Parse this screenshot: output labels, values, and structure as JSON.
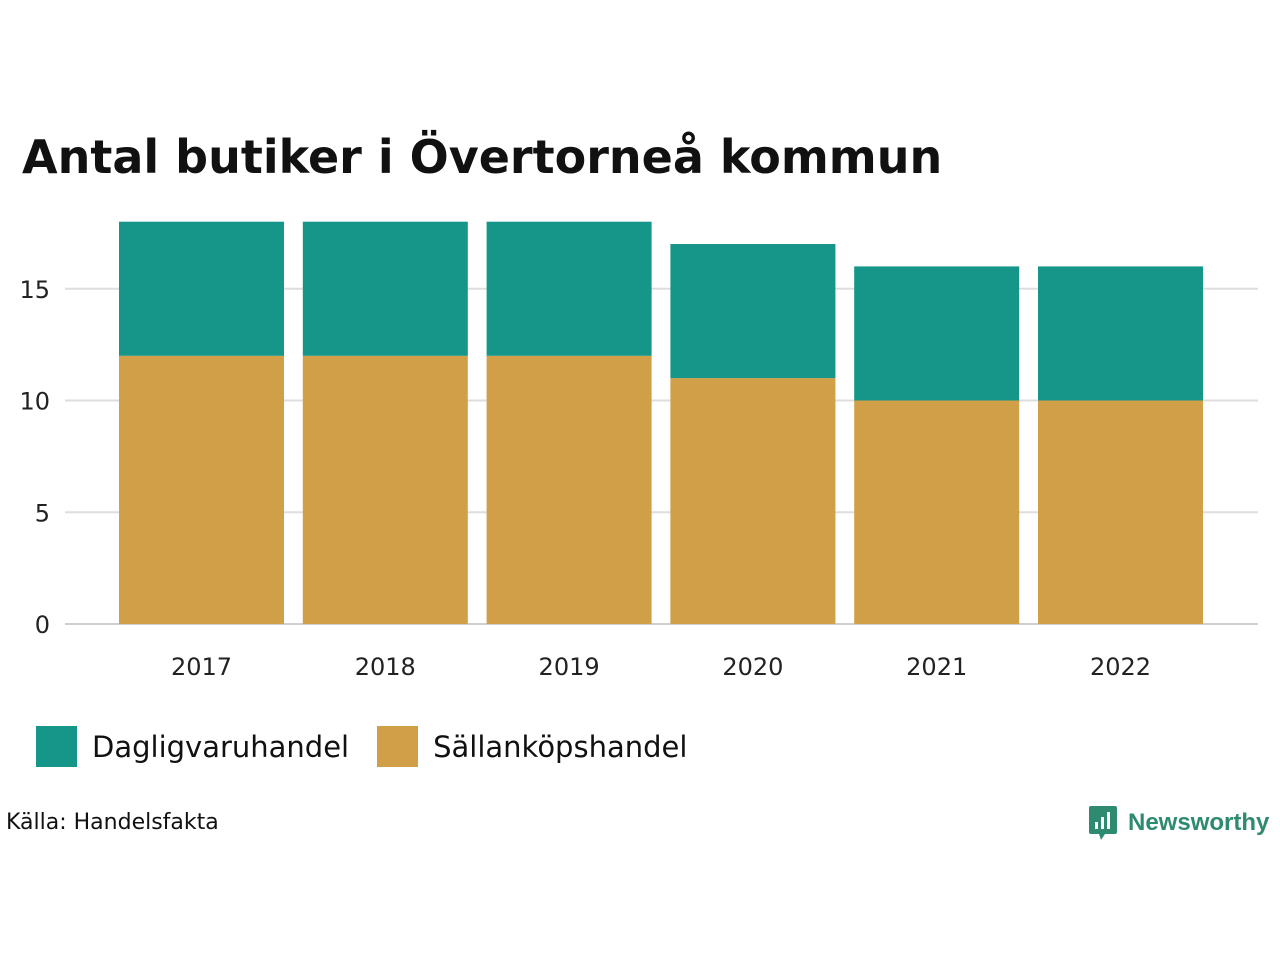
{
  "chart_data": {
    "type": "bar",
    "stacked": true,
    "title": "Antal butiker i Övertorneå kommun",
    "categories": [
      "2017",
      "2018",
      "2019",
      "2020",
      "2021",
      "2022"
    ],
    "series": [
      {
        "name": "Sällanköpshandel",
        "values": [
          12,
          12,
          12,
          11,
          10,
          10
        ],
        "color": "#d19f47"
      },
      {
        "name": "Dagligvaruhandel",
        "values": [
          6,
          6,
          6,
          6,
          6,
          6
        ],
        "color": "#159688"
      }
    ],
    "yticks": [
      0,
      5,
      10,
      15
    ],
    "ylim": [
      0,
      18
    ],
    "grid": true,
    "legend_position": "bottom-left"
  },
  "legend": [
    {
      "label": "Dagligvaruhandel",
      "color": "#159688"
    },
    {
      "label": "Sällanköpshandel",
      "color": "#d19f47"
    }
  ],
  "source": "Källa: Handelsfakta",
  "brand": "Newsworthy",
  "brand_color": "#2f8a72",
  "brand_icon": "bar-chart-speech-bubble-icon"
}
